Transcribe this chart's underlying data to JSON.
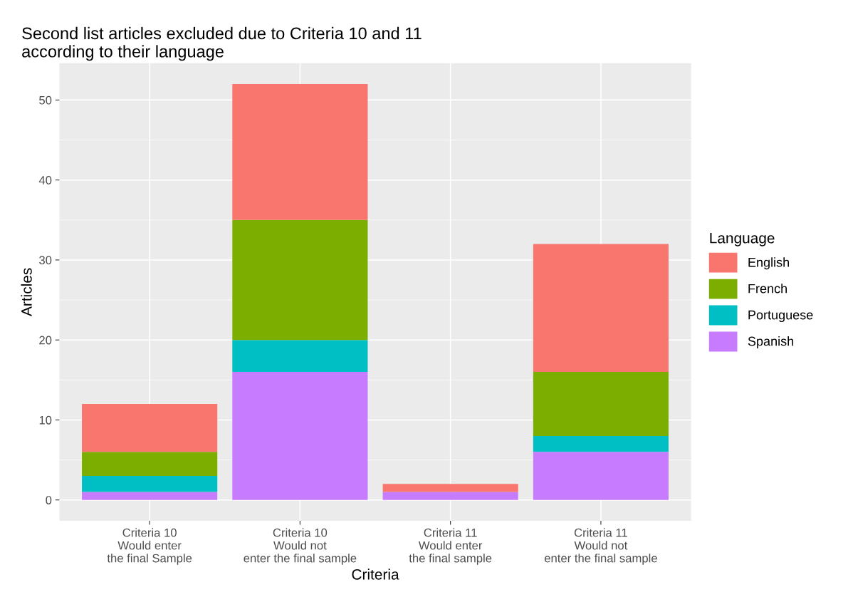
{
  "chart_data": {
    "type": "bar",
    "title": "Second list articles excluded due to Criteria 10 and 11\naccording to their language",
    "xlabel": "Criteria",
    "ylabel": "Articles",
    "legend_title": "Language",
    "categories": [
      "Criteria 10\nWould enter\nthe final Sample",
      "Criteria 10\nWould not\nenter the final sample",
      "Criteria 11\nWould enter\nthe final sample",
      "Criteria 11\nWould not\nenter the final sample"
    ],
    "stacked": true,
    "series": [
      {
        "name": "Spanish",
        "color": "#c77cff",
        "values": [
          1,
          16,
          1,
          6
        ]
      },
      {
        "name": "Portuguese",
        "color": "#00bfc4",
        "values": [
          2,
          4,
          0,
          2
        ]
      },
      {
        "name": "French",
        "color": "#7cae00",
        "values": [
          3,
          15,
          0,
          8
        ]
      },
      {
        "name": "English",
        "color": "#f8766d",
        "values": [
          6,
          17,
          1,
          16
        ]
      }
    ],
    "ylim": [
      -2.6,
      54.6
    ],
    "yticks": [
      0,
      10,
      20,
      30,
      40,
      50
    ],
    "grid": true,
    "legend": "right"
  }
}
